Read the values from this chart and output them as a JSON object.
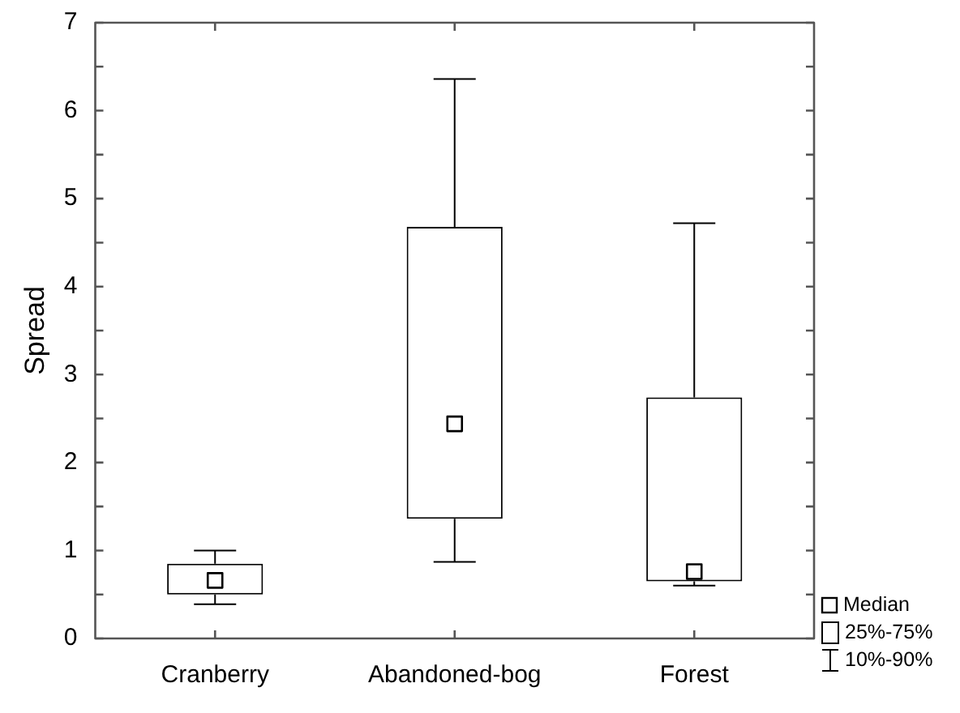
{
  "chart_data": {
    "type": "box",
    "ylabel": "Spread",
    "categories": [
      "Cranberry",
      "Abandoned-bog",
      "Forest"
    ],
    "boxes": [
      {
        "low": 0.39,
        "q1": 0.5,
        "median": 0.66,
        "q3": 0.85,
        "high": 1.0
      },
      {
        "low": 0.87,
        "q1": 1.36,
        "median": 2.44,
        "q3": 4.68,
        "high": 6.36
      },
      {
        "low": 0.6,
        "q1": 0.65,
        "median": 0.76,
        "q3": 2.74,
        "high": 4.72
      }
    ],
    "ylim": [
      0,
      7
    ],
    "yticks": [
      0,
      {
        "value": 0.5,
        "label": null
      },
      1,
      {
        "value": 1.5,
        "label": null
      },
      2,
      {
        "value": 2.5,
        "label": null
      },
      3,
      {
        "value": 3.5,
        "label": null
      },
      4,
      {
        "value": 4.5,
        "label": null
      },
      5,
      {
        "value": 5.5,
        "label": null
      },
      6,
      {
        "value": 6.5,
        "label": null
      },
      7
    ],
    "grid": false,
    "legend": false,
    "marker": "square",
    "annotations": [
      "Median",
      "25%-75%",
      "10%-90%"
    ]
  }
}
